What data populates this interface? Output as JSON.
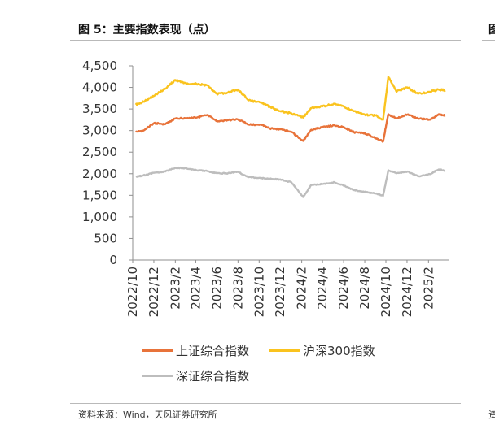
{
  "header": {
    "title": "图 5：主要指数表现（点）",
    "cut_title": "图"
  },
  "footer": {
    "source": "资料来源：Wind，天风证券研究所",
    "cut_source": "资"
  },
  "colors": {
    "sse": "#e8733a",
    "hs300": "#fac31e",
    "szse": "#bdbdbd",
    "axis": "#8f8f8f"
  },
  "chart_data": {
    "type": "line",
    "title": "图 5：主要指数表现（点）",
    "xlabel": "",
    "ylabel": "",
    "ylim": [
      0,
      4500
    ],
    "yticks": [
      0,
      500,
      1000,
      1500,
      2000,
      2500,
      3000,
      3500,
      4000,
      4500
    ],
    "ytick_labels": [
      "0",
      "500",
      "1,000",
      "1,500",
      "2,000",
      "2,500",
      "3,000",
      "3,500",
      "4,000",
      "4,500"
    ],
    "xticks": [
      "2022/10",
      "2022/12",
      "2023/2",
      "2023/4",
      "2023/6",
      "2023/8",
      "2023/10",
      "2023/12",
      "2024/2",
      "2024/4",
      "2024/6",
      "2024/8",
      "2024/10",
      "2024/12",
      "2025/2"
    ],
    "x": [
      "2022/10/10",
      "2022/11/01",
      "2022/12/01",
      "2023/01/03",
      "2023/02/01",
      "2023/03/01",
      "2023/04/03",
      "2023/05/04",
      "2023/06/01",
      "2023/07/03",
      "2023/08/01",
      "2023/09/01",
      "2023/10/09",
      "2023/11/01",
      "2023/12/01",
      "2024/01/02",
      "2024/02/05",
      "2024/02/29",
      "2024/04/01",
      "2024/05/06",
      "2024/06/03",
      "2024/07/01",
      "2024/08/01",
      "2024/09/02",
      "2024/09/23",
      "2024/10/08",
      "2024/11/01",
      "2024/12/02",
      "2025/01/02",
      "2025/02/05",
      "2025/03/03",
      "2025/03/21"
    ],
    "grid": false,
    "legend_position": "bottom",
    "series": [
      {
        "name": "上证综合指数",
        "color": "#e8733a",
        "values": [
          2970,
          3000,
          3170,
          3150,
          3280,
          3290,
          3300,
          3360,
          3220,
          3240,
          3260,
          3140,
          3130,
          3050,
          3030,
          2970,
          2760,
          3020,
          3080,
          3120,
          3070,
          2960,
          2940,
          2820,
          2750,
          3380,
          3280,
          3370,
          3280,
          3250,
          3380,
          3350
        ]
      },
      {
        "name": "沪深300指数",
        "color": "#fac31e",
        "values": [
          3600,
          3670,
          3800,
          3970,
          4170,
          4100,
          4080,
          4050,
          3850,
          3880,
          3950,
          3700,
          3650,
          3550,
          3450,
          3400,
          3300,
          3520,
          3560,
          3620,
          3550,
          3450,
          3370,
          3350,
          3250,
          4250,
          3900,
          4000,
          3850,
          3900,
          3950,
          3930
        ]
      },
      {
        "name": "深证综合指数",
        "color": "#bdbdbd",
        "values": [
          1930,
          1960,
          2020,
          2050,
          2140,
          2130,
          2080,
          2060,
          2010,
          2010,
          2040,
          1920,
          1900,
          1880,
          1870,
          1800,
          1460,
          1740,
          1760,
          1800,
          1720,
          1620,
          1580,
          1540,
          1490,
          2080,
          2010,
          2050,
          1940,
          1990,
          2100,
          2070
        ]
      }
    ]
  }
}
